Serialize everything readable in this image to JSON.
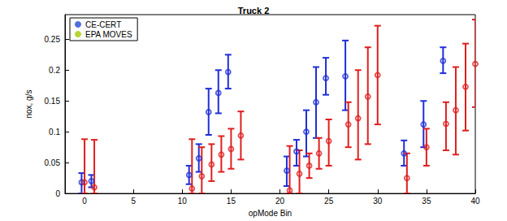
{
  "chart_data": {
    "type": "scatter",
    "title": "Truck 2",
    "x_label": "opMode Bin",
    "y_label": "nox, g/s",
    "xlim": [
      -2,
      40
    ],
    "xticks": [
      0,
      5,
      10,
      15,
      20,
      25,
      30,
      35,
      40
    ],
    "ylim": [
      0,
      0.29
    ],
    "yticks": [
      0,
      0.05,
      0.1,
      0.15,
      0.2,
      0.25
    ],
    "grid": false,
    "legend": "upper left",
    "series": [
      {
        "name": "CE-CERT",
        "color": "#1f2fd6",
        "marker": "o",
        "x": [
          -0.3,
          0.7,
          10.7,
          11.7,
          12.7,
          13.7,
          14.7,
          20.7,
          21.7,
          22.7,
          23.7,
          24.7,
          26.7,
          32.7,
          34.7,
          36.7
        ],
        "values": [
          0.018,
          0.02,
          0.03,
          0.057,
          0.132,
          0.163,
          0.197,
          0.037,
          0.068,
          0.1,
          0.148,
          0.187,
          0.19,
          0.065,
          0.112,
          0.215
        ],
        "lower": [
          0.0,
          0.01,
          0.015,
          0.035,
          0.095,
          0.13,
          0.17,
          0.012,
          0.045,
          0.06,
          0.09,
          0.16,
          0.135,
          0.045,
          0.075,
          0.195
        ],
        "upper": [
          0.033,
          0.03,
          0.045,
          0.08,
          0.17,
          0.2,
          0.225,
          0.06,
          0.087,
          0.135,
          0.205,
          0.22,
          0.248,
          0.086,
          0.15,
          0.237
        ]
      },
      {
        "name": "EPA MOVES",
        "color": "#e01e1e",
        "marker": "o",
        "x": [
          0,
          1,
          11,
          12,
          13,
          14,
          15,
          16,
          21,
          22,
          23,
          24,
          25,
          27,
          28,
          29,
          30,
          33,
          35,
          37,
          38,
          39,
          40
        ],
        "values": [
          0.018,
          0.01,
          0.008,
          0.028,
          0.047,
          0.063,
          0.072,
          0.094,
          0.005,
          0.032,
          0.045,
          0.065,
          0.085,
          0.112,
          0.122,
          0.157,
          0.192,
          0.025,
          0.075,
          0.113,
          0.135,
          0.173,
          0.21
        ],
        "lower": [
          0.0,
          0.0,
          0.0,
          0.0,
          0.02,
          0.035,
          0.04,
          0.055,
          0.0,
          0.0,
          0.025,
          0.04,
          0.045,
          0.075,
          0.055,
          0.08,
          0.112,
          0.0,
          0.045,
          0.07,
          0.063,
          0.102,
          0.14
        ],
        "upper": [
          0.088,
          0.087,
          0.088,
          0.075,
          0.08,
          0.093,
          0.105,
          0.133,
          0.077,
          0.07,
          0.065,
          0.09,
          0.12,
          0.148,
          0.2,
          0.237,
          0.272,
          0.065,
          0.105,
          0.148,
          0.205,
          0.243,
          0.282
        ]
      }
    ]
  }
}
